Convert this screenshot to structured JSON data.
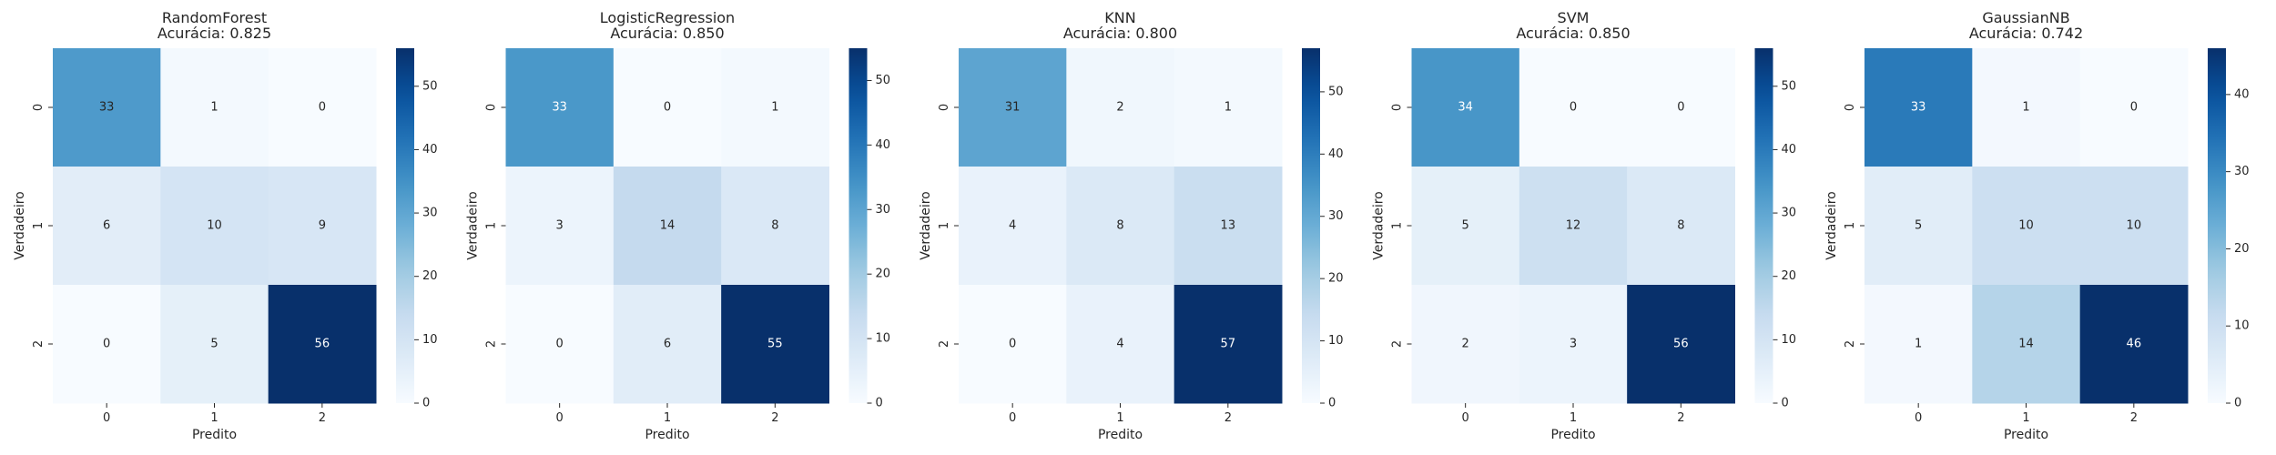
{
  "chart_data": [
    {
      "type": "heatmap",
      "title": "RandomForest",
      "subtitle": "Acurácia: 0.825",
      "xlabel": "Predito",
      "ylabel": "Verdadeiro",
      "x_categories": [
        "0",
        "1",
        "2"
      ],
      "y_categories": [
        "0",
        "1",
        "2"
      ],
      "values": [
        [
          33,
          1,
          0
        ],
        [
          6,
          10,
          9
        ],
        [
          0,
          5,
          56
        ]
      ],
      "colormap": "Blues",
      "colorbar": {
        "min": 0,
        "max": 56,
        "ticks": [
          0,
          10,
          20,
          30,
          40,
          50
        ]
      }
    },
    {
      "type": "heatmap",
      "title": "LogisticRegression",
      "subtitle": "Acurácia: 0.850",
      "xlabel": "Predito",
      "ylabel": "Verdadeiro",
      "x_categories": [
        "0",
        "1",
        "2"
      ],
      "y_categories": [
        "0",
        "1",
        "2"
      ],
      "values": [
        [
          33,
          0,
          1
        ],
        [
          3,
          14,
          8
        ],
        [
          0,
          6,
          55
        ]
      ],
      "colormap": "Blues",
      "colorbar": {
        "min": 0,
        "max": 55,
        "ticks": [
          0,
          10,
          20,
          30,
          40,
          50
        ]
      }
    },
    {
      "type": "heatmap",
      "title": "KNN",
      "subtitle": "Acurácia: 0.800",
      "xlabel": "Predito",
      "ylabel": "Verdadeiro",
      "x_categories": [
        "0",
        "1",
        "2"
      ],
      "y_categories": [
        "0",
        "1",
        "2"
      ],
      "values": [
        [
          31,
          2,
          1
        ],
        [
          4,
          8,
          13
        ],
        [
          0,
          4,
          57
        ]
      ],
      "colormap": "Blues",
      "colorbar": {
        "min": 0,
        "max": 57,
        "ticks": [
          0,
          10,
          20,
          30,
          40,
          50
        ]
      }
    },
    {
      "type": "heatmap",
      "title": "SVM",
      "subtitle": "Acurácia: 0.850",
      "xlabel": "Predito",
      "ylabel": "Verdadeiro",
      "x_categories": [
        "0",
        "1",
        "2"
      ],
      "y_categories": [
        "0",
        "1",
        "2"
      ],
      "values": [
        [
          34,
          0,
          0
        ],
        [
          5,
          12,
          8
        ],
        [
          2,
          3,
          56
        ]
      ],
      "colormap": "Blues",
      "colorbar": {
        "min": 0,
        "max": 56,
        "ticks": [
          0,
          10,
          20,
          30,
          40,
          50
        ]
      }
    },
    {
      "type": "heatmap",
      "title": "GaussianNB",
      "subtitle": "Acurácia: 0.742",
      "xlabel": "Predito",
      "ylabel": "Verdadeiro",
      "x_categories": [
        "0",
        "1",
        "2"
      ],
      "y_categories": [
        "0",
        "1",
        "2"
      ],
      "values": [
        [
          33,
          1,
          0
        ],
        [
          5,
          10,
          10
        ],
        [
          1,
          14,
          46
        ]
      ],
      "colormap": "Blues",
      "colorbar": {
        "min": 0,
        "max": 46,
        "ticks": [
          0,
          10,
          20,
          30,
          40
        ]
      }
    }
  ]
}
